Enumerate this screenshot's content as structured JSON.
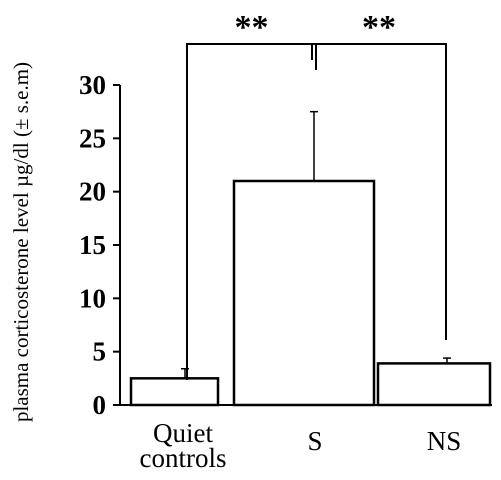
{
  "chart_data": {
    "type": "bar",
    "categories": [
      [
        "Quiet",
        "controls"
      ],
      [
        "S"
      ],
      [
        "NS"
      ]
    ],
    "values": [
      2.5,
      21.0,
      3.9
    ],
    "errors": [
      0.9,
      6.5,
      0.5
    ],
    "ylabel": "plasma corticosterone level µg/dl (± s.e.m)",
    "xlabel": "",
    "ylim": [
      0,
      30
    ],
    "yticks": [
      0,
      5,
      10,
      15,
      20,
      25,
      30
    ],
    "grid": false,
    "bar_fill": "#ffffff",
    "bar_stroke": "#000000",
    "significance": [
      {
        "from": 0,
        "to": 1,
        "label": "**"
      },
      {
        "from": 1,
        "to": 2,
        "label": "**"
      }
    ]
  }
}
